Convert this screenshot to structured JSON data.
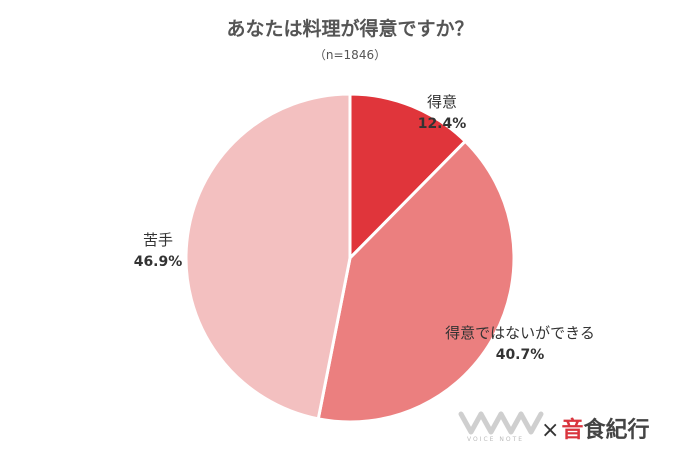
{
  "chart_data": {
    "type": "pie",
    "title": "あなたは料理が得意ですか？",
    "subtitle": "（n=1846）",
    "slices": [
      {
        "label": "得意",
        "value": 12.4,
        "value_label": "12.4%",
        "color": "#e0353b"
      },
      {
        "label": "得意ではないができる",
        "value": 40.7,
        "value_label": "40.7%",
        "color": "#eb7f7f"
      },
      {
        "label": "苦手",
        "value": 46.9,
        "value_label": "46.9%",
        "color": "#f3c0c0"
      }
    ],
    "start_angle": "12 o'clock",
    "direction": "clockwise"
  },
  "brand": {
    "times": "×",
    "accent": "音",
    "rest": "食紀行",
    "logo_text": "VOICE NOTE"
  }
}
